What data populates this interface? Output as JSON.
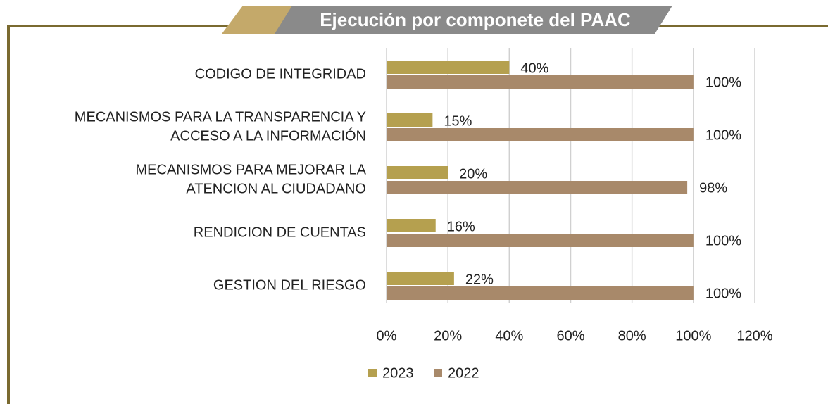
{
  "chart_data": {
    "type": "hbar",
    "title": "Ejecución por componete del PAAC",
    "categories": [
      "CODIGO DE INTEGRIDAD",
      "MECANISMOS PARA LA TRANSPARENCIA Y\nACCESO A LA INFORMACIÓN",
      "MECANISMOS PARA MEJORAR LA\nATENCION AL CIUDADANO",
      "RENDICION DE CUENTAS",
      "GESTION DEL RIESGO"
    ],
    "series": [
      {
        "name": "2023",
        "color": "#b5a04f",
        "values": [
          40,
          15,
          20,
          16,
          22
        ],
        "value_labels": [
          "40%",
          "15%",
          "20%",
          "16%",
          "22%"
        ]
      },
      {
        "name": "2022",
        "color": "#a8896a",
        "values": [
          100,
          100,
          98,
          100,
          100
        ],
        "value_labels": [
          "100%",
          "100%",
          "98%",
          "100%",
          "100%"
        ]
      }
    ],
    "xlim": [
      0,
      120
    ],
    "xticks": [
      {
        "value": 0,
        "label": "0%"
      },
      {
        "value": 20,
        "label": "20%"
      },
      {
        "value": 40,
        "label": "40%"
      },
      {
        "value": 60,
        "label": "60%"
      },
      {
        "value": 80,
        "label": "80%"
      },
      {
        "value": 100,
        "label": "100%"
      },
      {
        "value": 120,
        "label": "120%"
      }
    ],
    "grid": true,
    "legend": "bottom"
  }
}
